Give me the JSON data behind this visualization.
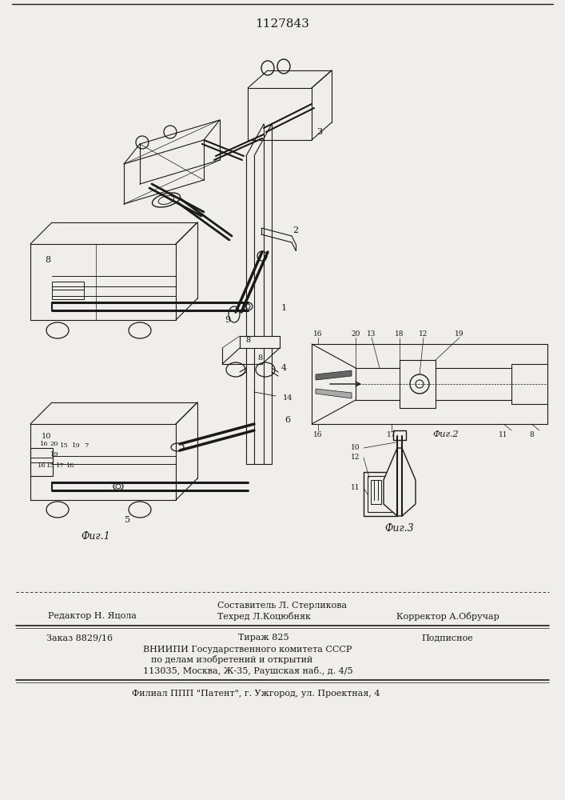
{
  "patent_number": "1127843",
  "bg_color": "#f0eeea",
  "drawing_color": "#1a1a1a",
  "footer_lines": {
    "composer_line": "Составитель Л. Стерликова",
    "editor_label": "Редактор Н. Яцола",
    "techred_label": "Техред Л.Коцюбняк",
    "corrector_label": "Корректор А.Обручар",
    "order_label": "Заказ 8829/16",
    "tirazh_label": "Тираж 825",
    "podpisnoe_label": "Подписное",
    "vnipi_line1": "ВНИИПИ Государственного комитета СССР",
    "vnipi_line2": "по делам изобретений и открытий",
    "vnipi_line3": "113035, Москва, Ж-35, Раушская наб., д. 4/5",
    "filial_line": "Филиал ППП \"Патент\", г. Ужгород, ул. Проектная, 4"
  },
  "fig_labels": {
    "fig1": "Фиг.1",
    "fig2": "Фиг.2",
    "fig3": "Фиг.3"
  }
}
